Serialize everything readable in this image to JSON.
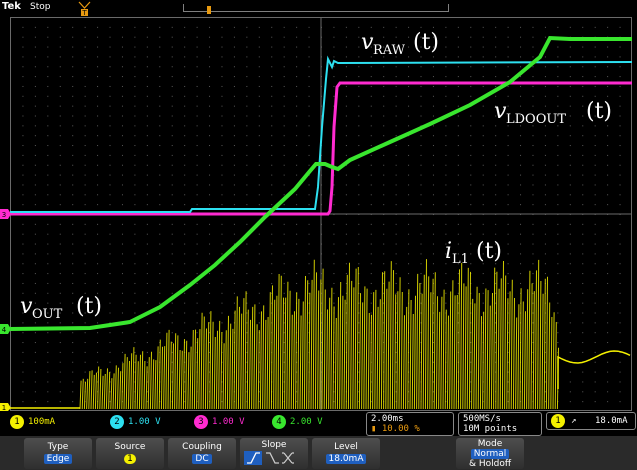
{
  "header": {
    "brand": "Tek",
    "state": "Stop"
  },
  "traces": {
    "v_raw": {
      "label": "v",
      "sub": "RAW",
      "arg": "(t)",
      "color": "#2de0f0"
    },
    "v_ldoout": {
      "label": "v",
      "sub": "LDOOUT",
      "arg": "(t)",
      "color": "#ff2bd0"
    },
    "v_out": {
      "label": "v",
      "sub": "OUT",
      "arg": "(t)",
      "color": "#39e62e"
    },
    "i_l1": {
      "label": "i",
      "sub": "L1",
      "arg": "(t)",
      "color": "#f4f000"
    }
  },
  "markers": {
    "ch1": "1",
    "ch2": "2",
    "ch3": "3",
    "ch4": "4",
    "trigger": "T"
  },
  "channels": [
    {
      "num": "1",
      "scale": "100mA",
      "color": "#f4f000"
    },
    {
      "num": "2",
      "scale": "1.00 V",
      "color": "#2de0f0"
    },
    {
      "num": "3",
      "scale": "1.00 V",
      "color": "#ff2bd0"
    },
    {
      "num": "4",
      "scale": "2.00 V",
      "color": "#39e62e"
    }
  ],
  "timebase": {
    "scale": "2.00ms",
    "position": "10.00 %"
  },
  "acquisition": {
    "rate": "500MS/s",
    "points": "10M points"
  },
  "trigger": {
    "channel": "1",
    "level": "18.0mA"
  },
  "menu": {
    "type_label": "Type",
    "type_value": "Edge",
    "source_label": "Source",
    "source_value": "1",
    "coupling_label": "Coupling",
    "coupling_value": "DC",
    "slope_label": "Slope",
    "level_label": "Level",
    "level_value": "18.0mA",
    "mode_label": "Mode",
    "mode_value": "Normal",
    "mode_value2": "& Holdoff"
  }
}
